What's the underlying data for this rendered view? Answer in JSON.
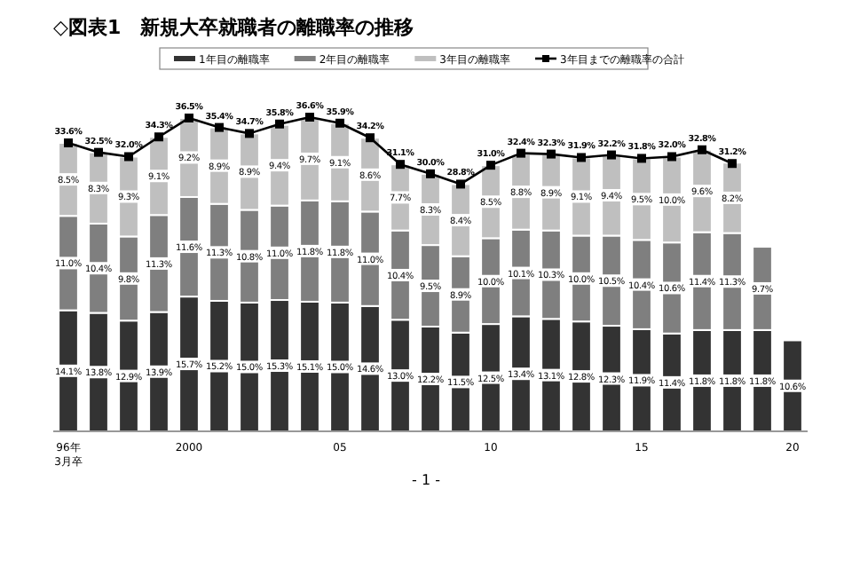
{
  "chart_data": {
    "type": "bar",
    "stacked": true,
    "title": "◇図表1　新規大卒就職者の離職率の推移",
    "categories": [
      "96年\n3月卒",
      null,
      null,
      null,
      "2000",
      null,
      null,
      null,
      null,
      "05",
      null,
      null,
      null,
      null,
      "10",
      null,
      null,
      null,
      null,
      "15",
      null,
      null,
      null,
      null,
      "20"
    ],
    "series": [
      {
        "name": "1年目の離職率",
        "color": "#333333",
        "values": [
          14.1,
          13.8,
          12.9,
          13.9,
          15.7,
          15.2,
          15.0,
          15.3,
          15.1,
          15.0,
          14.6,
          13.0,
          12.2,
          11.5,
          12.5,
          13.4,
          13.1,
          12.8,
          12.3,
          11.9,
          11.4,
          11.8,
          11.8,
          11.8,
          10.6
        ],
        "value_labels": [
          "14.1%",
          "13.8%",
          "12.9%",
          "13.9%",
          "15.7%",
          "15.2%",
          "15.0%",
          "15.3%",
          "15.1%",
          "15.0%",
          "14.6%",
          "13.0%",
          "12.2%",
          "11.5%",
          "12.5%",
          "13.4%",
          "13.1%",
          "12.8%",
          "12.3%",
          "11.9%",
          "11.4%",
          "11.8%",
          "11.8%",
          "11.8%",
          "10.6%"
        ]
      },
      {
        "name": "2年目の離職率",
        "color": "#7f7f7f",
        "values": [
          11.0,
          10.4,
          9.8,
          11.3,
          11.6,
          11.3,
          10.8,
          11.0,
          11.8,
          11.8,
          11.0,
          10.4,
          9.5,
          8.9,
          10.0,
          10.1,
          10.3,
          10.0,
          10.5,
          10.4,
          10.6,
          11.4,
          11.3,
          9.7,
          null
        ],
        "value_labels": [
          "11.0%",
          "10.4%",
          "9.8%",
          "11.3%",
          "11.6%",
          "11.3%",
          "10.8%",
          "11.0%",
          "11.8%",
          "11.8%",
          "11.0%",
          "10.4%",
          "9.5%",
          "8.9%",
          "10.0%",
          "10.1%",
          "10.3%",
          "10.0%",
          "10.5%",
          "10.4%",
          "10.6%",
          "11.4%",
          "11.3%",
          "9.7%",
          null
        ]
      },
      {
        "name": "3年目の離職率",
        "color": "#bfbfbf",
        "values": [
          8.5,
          8.3,
          9.3,
          9.1,
          9.2,
          8.9,
          8.9,
          9.4,
          9.7,
          9.1,
          8.6,
          7.7,
          8.3,
          8.4,
          8.5,
          8.8,
          8.9,
          9.1,
          9.4,
          9.5,
          10.0,
          9.6,
          8.2,
          null,
          null
        ],
        "value_labels": [
          "8.5%",
          "8.3%",
          "9.3%",
          "9.1%",
          "9.2%",
          "8.9%",
          "8.9%",
          "9.4%",
          "9.7%",
          "9.1%",
          "8.6%",
          "7.7%",
          "8.3%",
          "8.4%",
          "8.5%",
          "8.8%",
          "8.9%",
          "9.1%",
          "9.4%",
          "9.5%",
          "10.0%",
          "9.6%",
          "8.2%",
          null,
          null
        ]
      },
      {
        "name": "3年目までの離職率の合計",
        "type": "line",
        "color": "#000000",
        "values": [
          33.6,
          32.5,
          32.0,
          34.3,
          36.5,
          35.4,
          34.7,
          35.8,
          36.6,
          35.9,
          34.2,
          31.1,
          30.0,
          28.8,
          31.0,
          32.4,
          32.3,
          31.9,
          32.2,
          31.8,
          32.0,
          32.8,
          31.2,
          null,
          null
        ],
        "value_labels": [
          "33.6%",
          "32.5%",
          "32.0%",
          "34.3%",
          "36.5%",
          "35.4%",
          "34.7%",
          "35.8%",
          "36.6%",
          "35.9%",
          "34.2%",
          "31.1%",
          "30.0%",
          "28.8%",
          "31.0%",
          "32.4%",
          "32.3%",
          "31.9%",
          "32.2%",
          "31.8%",
          "32.0%",
          "32.8%",
          "31.2%",
          null,
          null
        ]
      }
    ],
    "marker": "square",
    "line_style": "solid",
    "legend": "top",
    "annotations": [
      "- 1 -"
    ]
  }
}
